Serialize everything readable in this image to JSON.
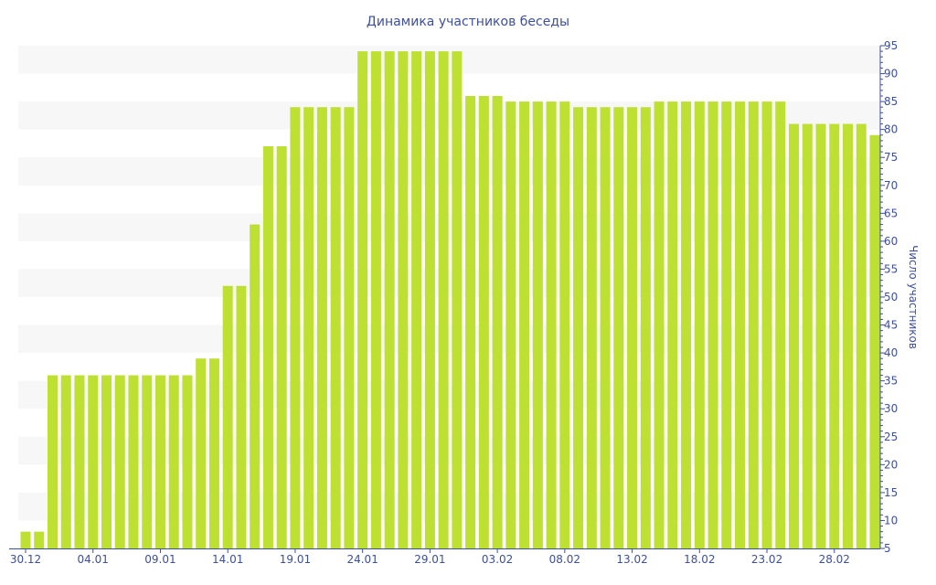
{
  "chart_data": {
    "type": "bar",
    "title": "Динамика участников беседы",
    "xlabel": "",
    "ylabel": "Число участников",
    "ylim": [
      5,
      95
    ],
    "ytick_step": 5,
    "y_axis_side": "right",
    "x_tick_labels": [
      "30.12",
      "04.01",
      "09.01",
      "14.01",
      "19.01",
      "24.01",
      "29.01",
      "03.02",
      "08.02",
      "13.02",
      "18.02",
      "23.02",
      "28.02"
    ],
    "x_tick_every": 5,
    "values": [
      8,
      8,
      36,
      36,
      36,
      36,
      36,
      36,
      36,
      36,
      36,
      36,
      36,
      39,
      39,
      52,
      52,
      63,
      77,
      77,
      84,
      84,
      84,
      84,
      84,
      94,
      94,
      94,
      94,
      94,
      94,
      94,
      94,
      86,
      86,
      86,
      85,
      85,
      85,
      85,
      85,
      84,
      84,
      84,
      84,
      84,
      84,
      85,
      85,
      85,
      85,
      85,
      85,
      85,
      85,
      85,
      85,
      81,
      81,
      81,
      81,
      81,
      81,
      79
    ],
    "grid": "alternating horizontal bands",
    "colors": {
      "bar": "#bde032",
      "axis": "#3d4f9f",
      "band": "#f7f7f7",
      "text": "#3d4f9f"
    }
  }
}
